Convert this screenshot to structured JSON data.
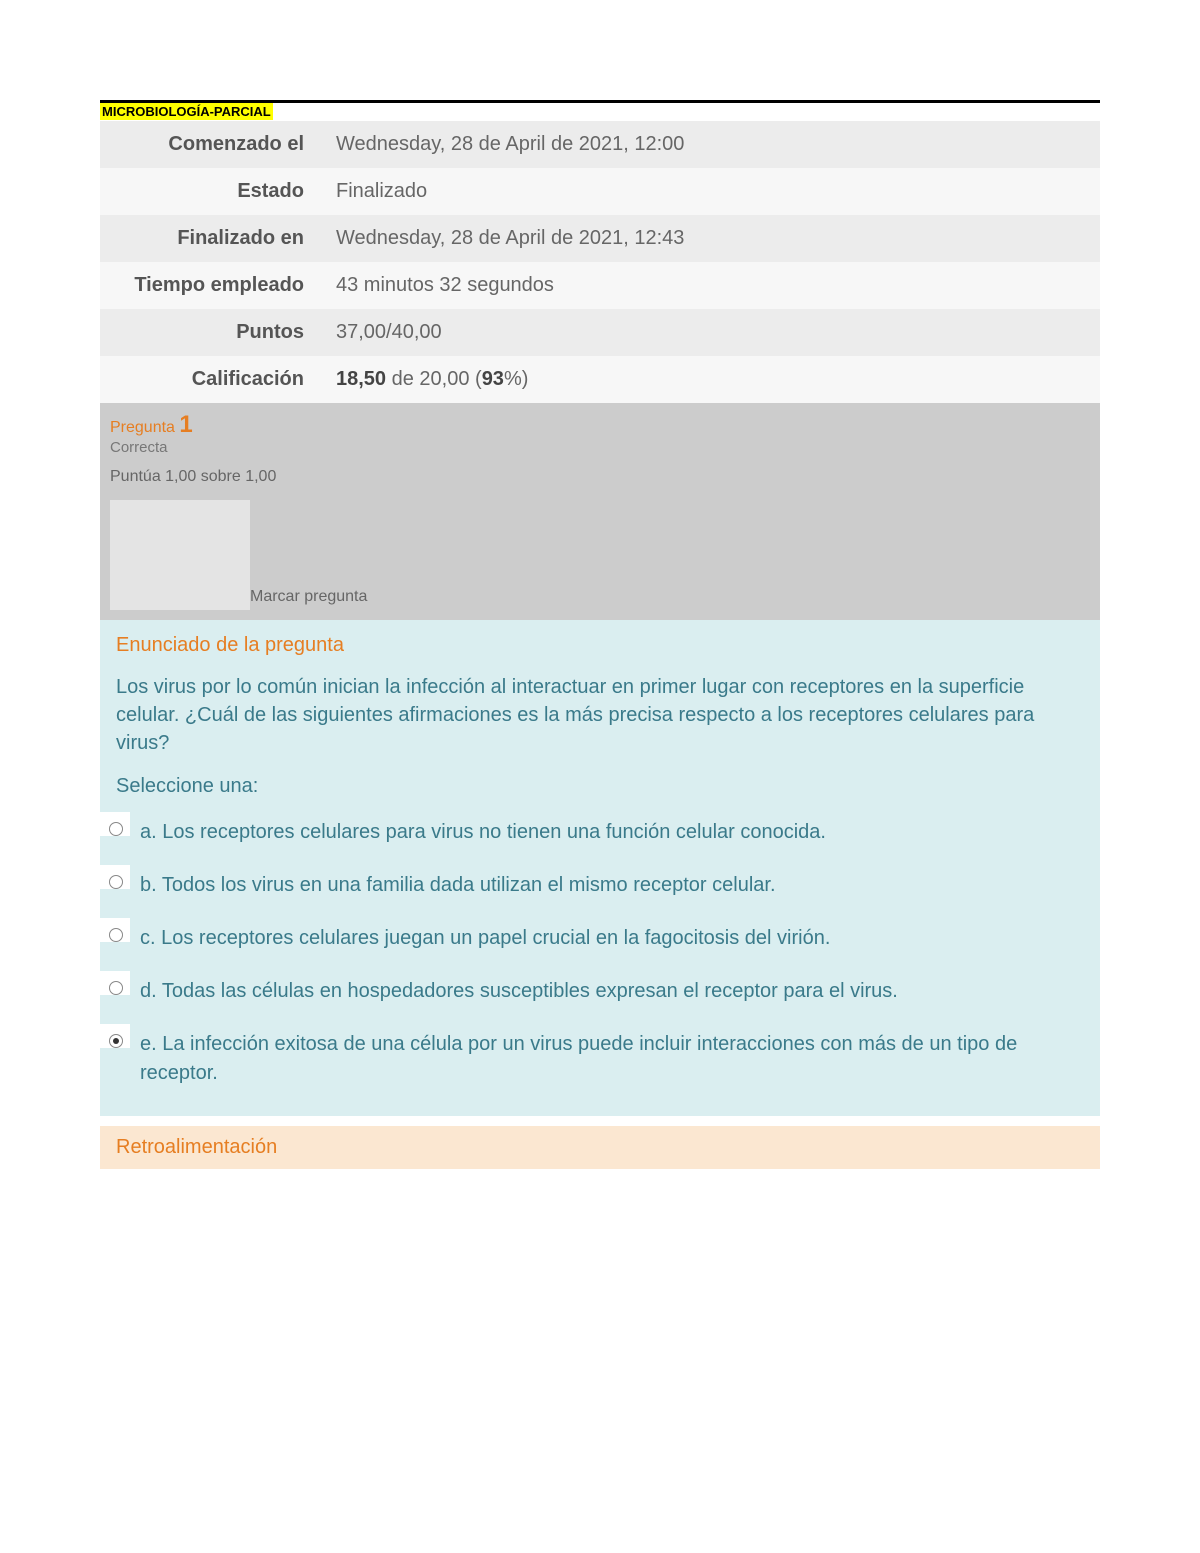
{
  "document": {
    "title": "MICROBIOLOGÍA-PARCIAL"
  },
  "summary": {
    "rows": [
      {
        "label": "Comenzado el",
        "value": "Wednesday, 28 de April de 2021, 12:00",
        "alt": true
      },
      {
        "label": "Estado",
        "value": "Finalizado",
        "alt": false
      },
      {
        "label": "Finalizado en",
        "value": "Wednesday, 28 de April de 2021, 12:43",
        "alt": true
      },
      {
        "label": "Tiempo empleado",
        "value": "43 minutos 32 segundos",
        "alt": false
      },
      {
        "label": "Puntos",
        "value": "37,00/40,00",
        "alt": true
      }
    ],
    "grade": {
      "label": "Calificación",
      "score_bold": "18,50",
      "mid_text": " de 20,00 (",
      "percent_bold": "93",
      "suffix": "%)"
    }
  },
  "question": {
    "label": "Pregunta ",
    "number": "1",
    "status": "Correcta",
    "points": "Puntúa 1,00 sobre 1,00",
    "flag_label": "Marcar pregunta",
    "heading": "Enunciado de la pregunta",
    "text": "Los virus por lo común inician la infección al interactuar en primer lugar con receptores en la superficie celular. ¿Cuál de las siguientes afirmaciones es la más precisa respecto a los receptores celulares para virus?",
    "select_label": "Seleccione una:",
    "options": [
      {
        "letter": "a.",
        "text": "Los receptores celulares para virus no tienen una función celular conocida.",
        "selected": false
      },
      {
        "letter": "b.",
        "text": "Todos los virus en una familia dada utilizan el mismo receptor celular.",
        "selected": false
      },
      {
        "letter": "c.",
        "text": "Los receptores celulares juegan un papel crucial en la fagocitosis del virión.",
        "selected": false
      },
      {
        "letter": "d.",
        "text": "Todas las células en hospedadores susceptibles expresan el receptor para el virus.",
        "selected": false
      },
      {
        "letter": "e.",
        "text": "La infección exitosa de una célula por un virus puede incluir interacciones con más de un tipo de receptor.",
        "selected": true
      }
    ],
    "feedback_heading": "Retroalimentación"
  },
  "colors": {
    "highlight": "#ffff00",
    "accent": "#e67e22",
    "question_bg": "#daeef0",
    "header_bg": "#cccccc",
    "feedback_bg": "#fbe7d1",
    "text_teal": "#3a7a8a",
    "row_alt": "#ececec",
    "row_normal": "#f7f7f7"
  }
}
